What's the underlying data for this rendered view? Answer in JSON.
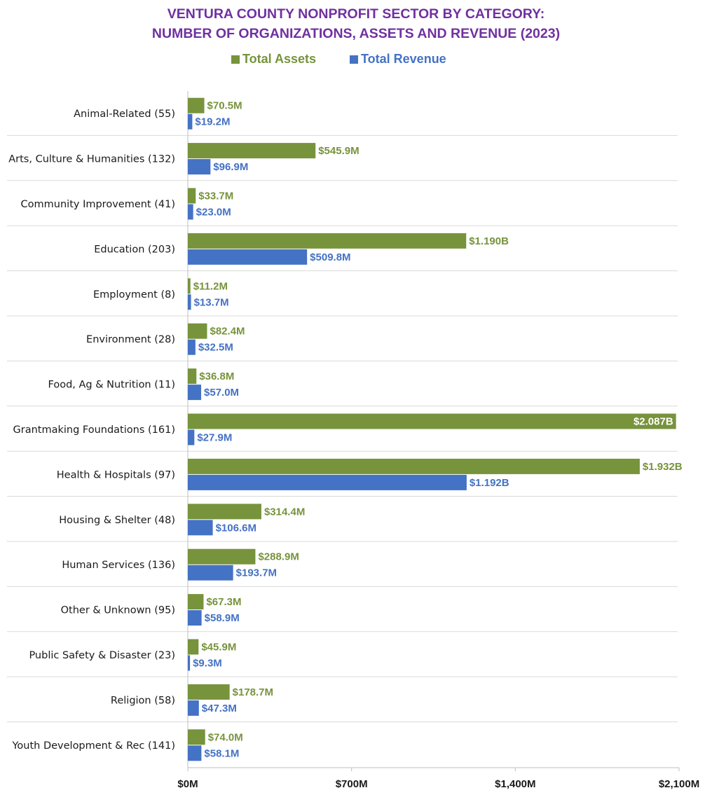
{
  "chart_data": {
    "type": "bar",
    "orientation": "horizontal",
    "title": "VENTURA COUNTY NONPROFIT SECTOR BY CATEGORY:",
    "subtitle": "NUMBER OF ORGANIZATIONS, ASSETS AND REVENUE (2023)",
    "xlabel": "",
    "ylabel": "",
    "xlim": [
      0,
      2100
    ],
    "x_units": "$M",
    "x_ticks": [
      0,
      700,
      1400,
      2100
    ],
    "x_tick_labels": [
      "$0M",
      "$700M",
      "$1,400M",
      "$2,100M"
    ],
    "legend_position": "top-center",
    "categories": [
      "Animal-Related (55)",
      "Arts, Culture & Humanities (132)",
      "Community Improvement (41)",
      "Education (203)",
      "Employment (8)",
      "Environment (28)",
      "Food, Ag & Nutrition (11)",
      "Grantmaking Foundations (161)",
      "Health & Hospitals (97)",
      "Housing & Shelter (48)",
      "Human Services (136)",
      "Other & Unknown (95)",
      "Public Safety & Disaster (23)",
      "Religion (58)",
      "Youth Development & Rec (141)"
    ],
    "series": [
      {
        "name": "Total Assets",
        "color": "#77933c",
        "values": [
          70.5,
          545.9,
          33.7,
          1190,
          11.2,
          82.4,
          36.8,
          2087,
          1932,
          314.4,
          288.9,
          67.3,
          45.9,
          178.7,
          74.0
        ],
        "labels": [
          "$70.5M",
          "$545.9M",
          "$33.7M",
          "$1.190B",
          "$11.2M",
          "$82.4M",
          "$36.8M",
          "$2.087B",
          "$1.932B",
          "$314.4M",
          "$288.9M",
          "$67.3M",
          "$45.9M",
          "$178.7M",
          "$74.0M"
        ]
      },
      {
        "name": "Total Revenue",
        "color": "#4472c4",
        "values": [
          19.2,
          96.9,
          23.0,
          509.8,
          13.7,
          32.5,
          57.0,
          27.9,
          1192,
          106.6,
          193.7,
          58.9,
          9.3,
          47.3,
          58.1
        ],
        "labels": [
          "$19.2M",
          "$96.9M",
          "$23.0M",
          "$509.8M",
          "$13.7M",
          "$32.5M",
          "$57.0M",
          "$27.9M",
          "$1.192B",
          "$106.6M",
          "$193.7M",
          "$58.9M",
          "$9.3M",
          "$47.3M",
          "$58.1M"
        ]
      }
    ],
    "inside_label_color": "#ffffff"
  }
}
